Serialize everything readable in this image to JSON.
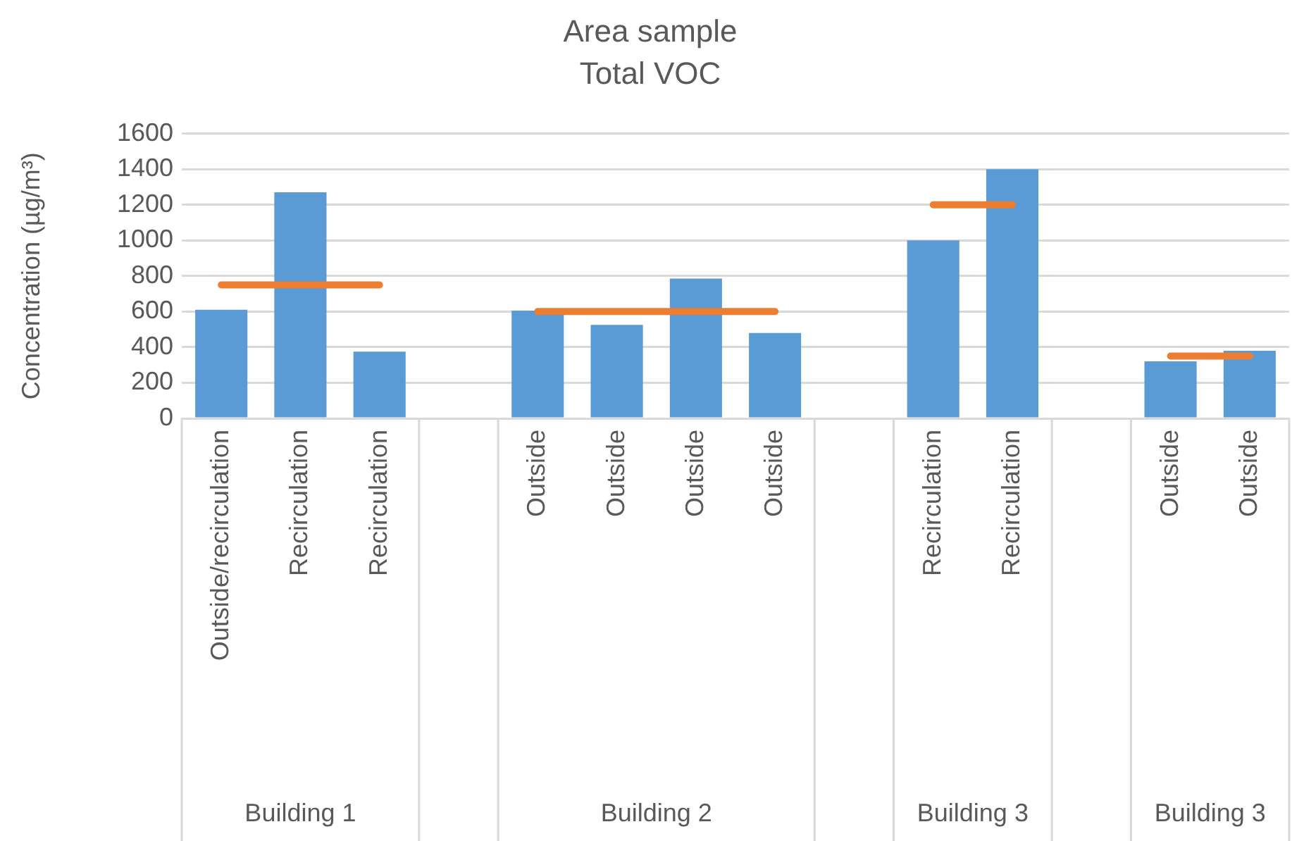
{
  "chart_data": {
    "type": "bar",
    "title": "Area sample",
    "subtitle": "Total VOC",
    "ylabel": "Concentration (µg/m³)",
    "categories": [
      "Outside/recirculation",
      "Recirculation",
      "Recirculation",
      null,
      "Outside",
      "Outside",
      "Outside",
      "Outside",
      null,
      "Recirculation",
      "Recirculation",
      null,
      "Outside",
      "Outside"
    ],
    "series": [
      {
        "color": "#5b9bd5",
        "values": [
          610,
          1270,
          375,
          null,
          605,
          525,
          785,
          480,
          null,
          1000,
          1400,
          null,
          320,
          380
        ]
      },
      {
        "type": "line",
        "color": "#ed7d31",
        "values": [
          750,
          750,
          750,
          null,
          600,
          600,
          600,
          600,
          null,
          1200,
          1200,
          null,
          350,
          350
        ]
      }
    ],
    "annotations": [
      "Building 1",
      "Building 2",
      "Building 3",
      "Building 3"
    ],
    "ylim": [
      0,
      1600
    ],
    "yticks": [
      0,
      200,
      400,
      600,
      800,
      1000,
      1200,
      1400,
      1600
    ],
    "grid": "y",
    "legend": false
  }
}
